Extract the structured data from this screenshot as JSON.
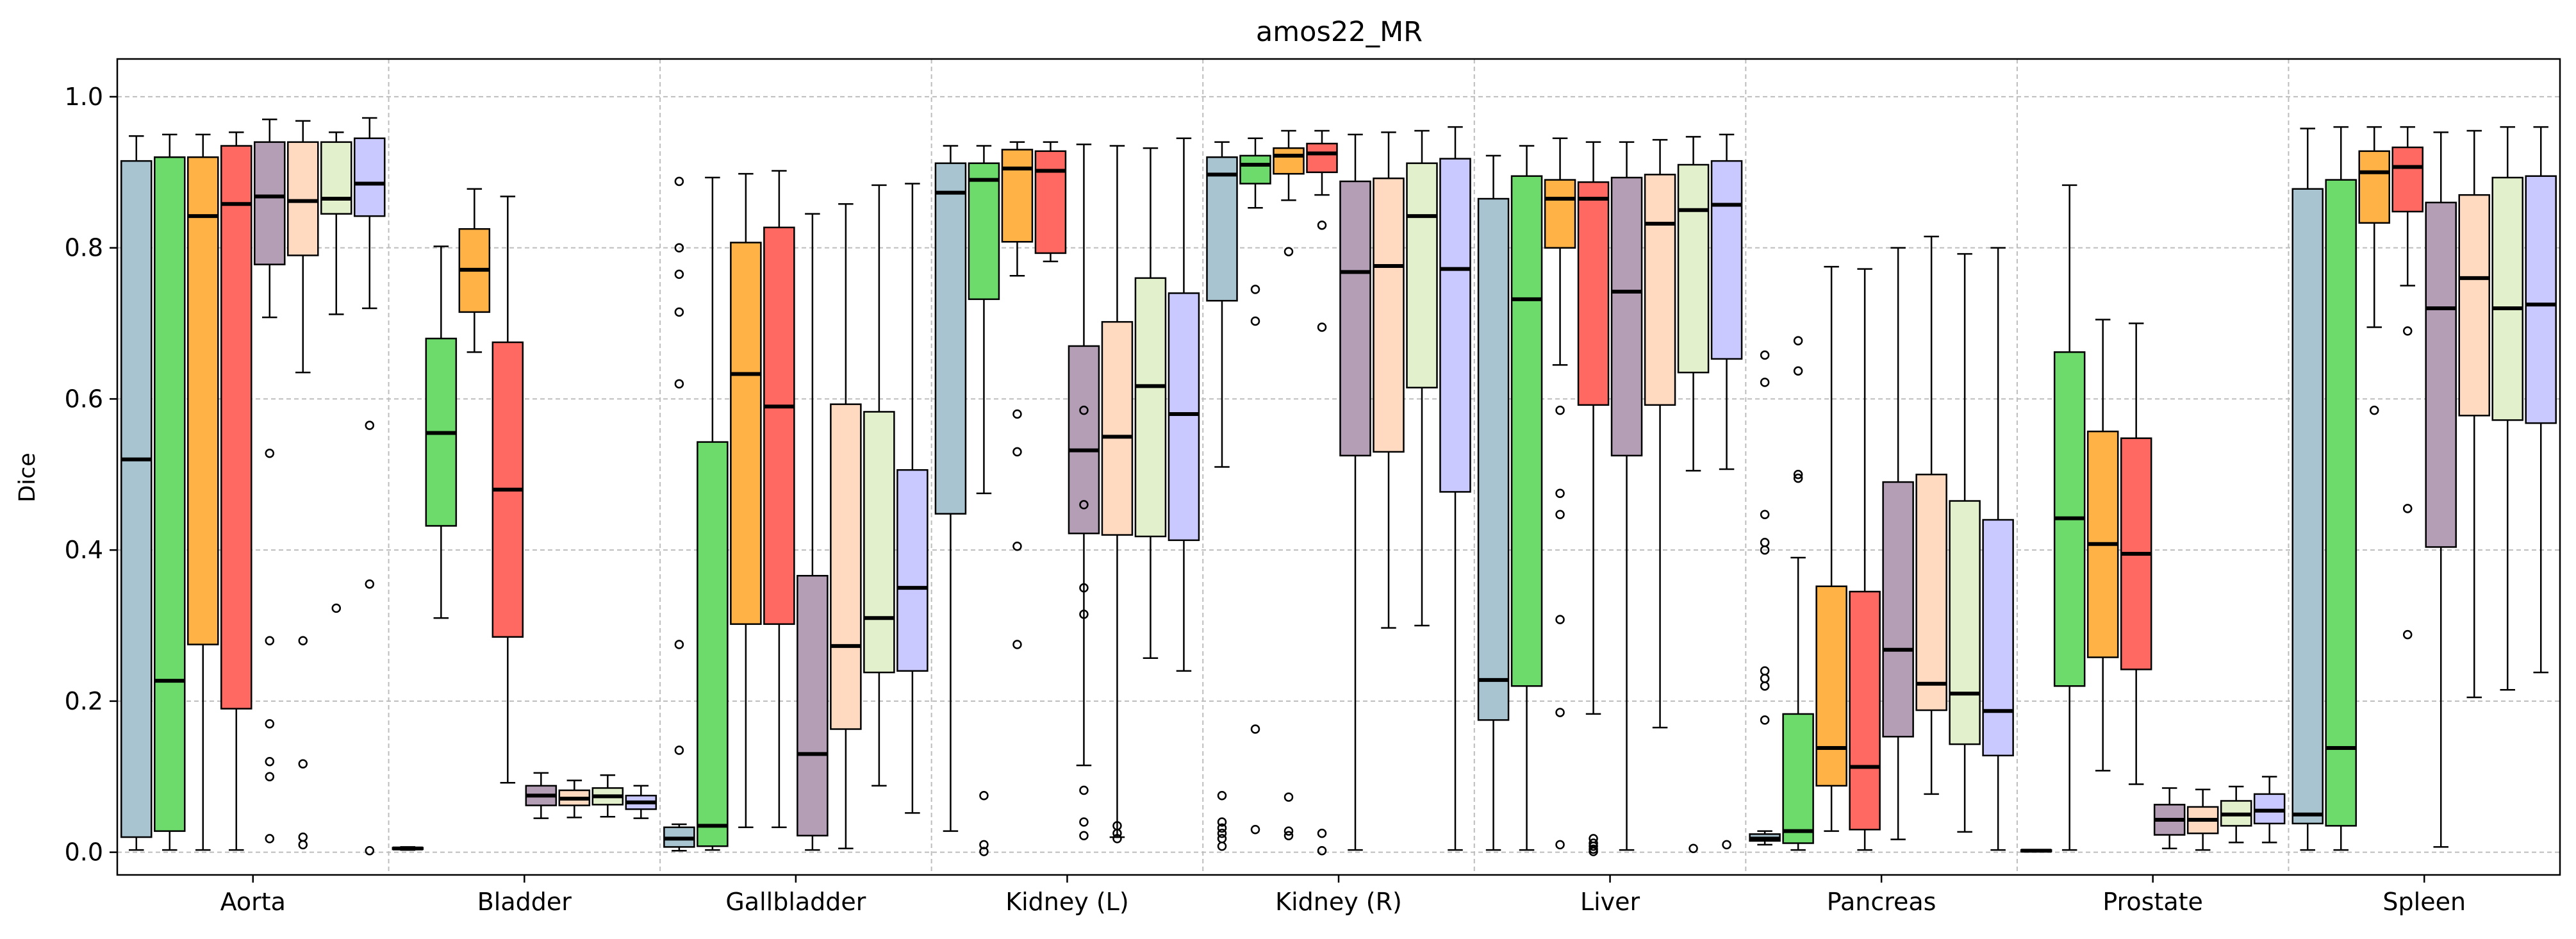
{
  "chart_data": {
    "type": "box",
    "title": "amos22_MR",
    "xlabel": "",
    "ylabel": "Dice",
    "ylim": [
      -0.03,
      1.05
    ],
    "yticks": [
      0.0,
      0.2,
      0.4,
      0.6,
      0.8,
      1.0
    ],
    "ytick_labels": [
      "0.0",
      "0.2",
      "0.4",
      "0.6",
      "0.8",
      "1.0"
    ],
    "grid": true,
    "categories": [
      "Aorta",
      "Bladder",
      "Gallbladder",
      "Kidney (L)",
      "Kidney (R)",
      "Liver",
      "Pancreas",
      "Prostate",
      "Spleen"
    ],
    "series_colors": [
      "#a7c4d0",
      "#6cdb6c",
      "#ffb347",
      "#ff6961",
      "#b39eb5",
      "#ffdac1",
      "#e2f0cb",
      "#c9c9ff"
    ],
    "boxes": [
      [
        {
          "wlo": 0.003,
          "q1": 0.02,
          "med": 0.52,
          "q3": 0.915,
          "whi": 0.948,
          "fl": []
        },
        {
          "wlo": 0.003,
          "q1": 0.028,
          "med": 0.227,
          "q3": 0.92,
          "whi": 0.95,
          "fl": []
        },
        {
          "wlo": 0.003,
          "q1": 0.275,
          "med": 0.842,
          "q3": 0.92,
          "whi": 0.95,
          "fl": []
        },
        {
          "wlo": 0.003,
          "q1": 0.19,
          "med": 0.858,
          "q3": 0.935,
          "whi": 0.953,
          "fl": []
        },
        {
          "wlo": 0.708,
          "q1": 0.778,
          "med": 0.868,
          "q3": 0.94,
          "whi": 0.97,
          "fl": [
            0.528,
            0.28,
            0.17,
            0.12,
            0.1,
            0.018
          ]
        },
        {
          "wlo": 0.635,
          "q1": 0.79,
          "med": 0.862,
          "q3": 0.94,
          "whi": 0.968,
          "fl": [
            0.28,
            0.117,
            0.02,
            0.01
          ]
        },
        {
          "wlo": 0.712,
          "q1": 0.845,
          "med": 0.865,
          "q3": 0.94,
          "whi": 0.953,
          "fl": [
            0.323
          ]
        },
        {
          "wlo": 0.72,
          "q1": 0.842,
          "med": 0.885,
          "q3": 0.945,
          "whi": 0.972,
          "fl": [
            0.565,
            0.355,
            0.002
          ]
        }
      ],
      [
        {
          "wlo": 0.003,
          "q1": 0.004,
          "med": 0.005,
          "q3": 0.006,
          "whi": 0.007,
          "fl": []
        },
        {
          "wlo": 0.31,
          "q1": 0.432,
          "med": 0.555,
          "q3": 0.68,
          "whi": 0.802,
          "fl": []
        },
        {
          "wlo": 0.662,
          "q1": 0.715,
          "med": 0.771,
          "q3": 0.825,
          "whi": 0.878,
          "fl": []
        },
        {
          "wlo": 0.092,
          "q1": 0.285,
          "med": 0.48,
          "q3": 0.675,
          "whi": 0.868,
          "fl": []
        },
        {
          "wlo": 0.045,
          "q1": 0.062,
          "med": 0.075,
          "q3": 0.088,
          "whi": 0.105,
          "fl": []
        },
        {
          "wlo": 0.046,
          "q1": 0.062,
          "med": 0.071,
          "q3": 0.082,
          "whi": 0.095,
          "fl": []
        },
        {
          "wlo": 0.047,
          "q1": 0.063,
          "med": 0.074,
          "q3": 0.085,
          "whi": 0.102,
          "fl": []
        },
        {
          "wlo": 0.045,
          "q1": 0.057,
          "med": 0.066,
          "q3": 0.075,
          "whi": 0.088,
          "fl": []
        }
      ],
      [
        {
          "wlo": 0.002,
          "q1": 0.007,
          "med": 0.018,
          "q3": 0.033,
          "whi": 0.037,
          "fl": [
            0.888,
            0.8,
            0.765,
            0.715,
            0.62,
            0.275,
            0.135
          ]
        },
        {
          "wlo": 0.003,
          "q1": 0.008,
          "med": 0.035,
          "q3": 0.543,
          "whi": 0.893,
          "fl": []
        },
        {
          "wlo": 0.033,
          "q1": 0.302,
          "med": 0.633,
          "q3": 0.807,
          "whi": 0.898,
          "fl": []
        },
        {
          "wlo": 0.033,
          "q1": 0.302,
          "med": 0.59,
          "q3": 0.827,
          "whi": 0.902,
          "fl": []
        },
        {
          "wlo": 0.003,
          "q1": 0.022,
          "med": 0.13,
          "q3": 0.366,
          "whi": 0.845,
          "fl": []
        },
        {
          "wlo": 0.005,
          "q1": 0.163,
          "med": 0.273,
          "q3": 0.593,
          "whi": 0.858,
          "fl": []
        },
        {
          "wlo": 0.088,
          "q1": 0.238,
          "med": 0.31,
          "q3": 0.583,
          "whi": 0.883,
          "fl": []
        },
        {
          "wlo": 0.052,
          "q1": 0.24,
          "med": 0.35,
          "q3": 0.506,
          "whi": 0.885,
          "fl": []
        }
      ],
      [
        {
          "wlo": 0.028,
          "q1": 0.448,
          "med": 0.873,
          "q3": 0.912,
          "whi": 0.935,
          "fl": []
        },
        {
          "wlo": 0.475,
          "q1": 0.732,
          "med": 0.89,
          "q3": 0.912,
          "whi": 0.935,
          "fl": [
            0.075,
            0.01,
            0.001
          ]
        },
        {
          "wlo": 0.763,
          "q1": 0.808,
          "med": 0.905,
          "q3": 0.93,
          "whi": 0.94,
          "fl": [
            0.58,
            0.53,
            0.405,
            0.275
          ]
        },
        {
          "wlo": 0.782,
          "q1": 0.793,
          "med": 0.902,
          "q3": 0.928,
          "whi": 0.94,
          "fl": []
        },
        {
          "wlo": 0.115,
          "q1": 0.422,
          "med": 0.532,
          "q3": 0.67,
          "whi": 0.937,
          "fl": [
            0.585,
            0.46,
            0.35,
            0.315,
            0.082,
            0.04,
            0.022
          ]
        },
        {
          "wlo": 0.02,
          "q1": 0.42,
          "med": 0.55,
          "q3": 0.702,
          "whi": 0.935,
          "fl": [
            0.035,
            0.025,
            0.018
          ]
        },
        {
          "wlo": 0.257,
          "q1": 0.418,
          "med": 0.617,
          "q3": 0.76,
          "whi": 0.932,
          "fl": []
        },
        {
          "wlo": 0.24,
          "q1": 0.413,
          "med": 0.58,
          "q3": 0.74,
          "whi": 0.945,
          "fl": []
        }
      ],
      [
        {
          "wlo": 0.51,
          "q1": 0.73,
          "med": 0.897,
          "q3": 0.92,
          "whi": 0.94,
          "fl": [
            0.075,
            0.04,
            0.032,
            0.025,
            0.018,
            0.008
          ]
        },
        {
          "wlo": 0.853,
          "q1": 0.885,
          "med": 0.91,
          "q3": 0.922,
          "whi": 0.945,
          "fl": [
            0.745,
            0.703,
            0.163,
            0.03
          ]
        },
        {
          "wlo": 0.863,
          "q1": 0.898,
          "med": 0.922,
          "q3": 0.932,
          "whi": 0.955,
          "fl": [
            0.795,
            0.073,
            0.028,
            0.022
          ]
        },
        {
          "wlo": 0.87,
          "q1": 0.9,
          "med": 0.925,
          "q3": 0.938,
          "whi": 0.955,
          "fl": [
            0.83,
            0.695,
            0.025,
            0.002
          ]
        },
        {
          "wlo": 0.003,
          "q1": 0.525,
          "med": 0.768,
          "q3": 0.888,
          "whi": 0.95,
          "fl": []
        },
        {
          "wlo": 0.297,
          "q1": 0.53,
          "med": 0.776,
          "q3": 0.892,
          "whi": 0.953,
          "fl": []
        },
        {
          "wlo": 0.3,
          "q1": 0.615,
          "med": 0.842,
          "q3": 0.912,
          "whi": 0.955,
          "fl": []
        },
        {
          "wlo": 0.003,
          "q1": 0.477,
          "med": 0.772,
          "q3": 0.918,
          "whi": 0.96,
          "fl": []
        }
      ],
      [
        {
          "wlo": 0.003,
          "q1": 0.175,
          "med": 0.228,
          "q3": 0.865,
          "whi": 0.922,
          "fl": []
        },
        {
          "wlo": 0.003,
          "q1": 0.22,
          "med": 0.732,
          "q3": 0.895,
          "whi": 0.935,
          "fl": []
        },
        {
          "wlo": 0.645,
          "q1": 0.8,
          "med": 0.865,
          "q3": 0.89,
          "whi": 0.945,
          "fl": [
            0.585,
            0.475,
            0.447,
            0.308,
            0.185,
            0.01
          ]
        },
        {
          "wlo": 0.183,
          "q1": 0.592,
          "med": 0.865,
          "q3": 0.887,
          "whi": 0.94,
          "fl": [
            0.018,
            0.012,
            0.008,
            0.004,
            0.001
          ]
        },
        {
          "wlo": 0.003,
          "q1": 0.525,
          "med": 0.742,
          "q3": 0.893,
          "whi": 0.94,
          "fl": []
        },
        {
          "wlo": 0.165,
          "q1": 0.592,
          "med": 0.832,
          "q3": 0.897,
          "whi": 0.943,
          "fl": []
        },
        {
          "wlo": 0.505,
          "q1": 0.635,
          "med": 0.85,
          "q3": 0.91,
          "whi": 0.947,
          "fl": [
            0.005
          ]
        },
        {
          "wlo": 0.507,
          "q1": 0.653,
          "med": 0.857,
          "q3": 0.915,
          "whi": 0.95,
          "fl": [
            0.01
          ]
        }
      ],
      [
        {
          "wlo": 0.01,
          "q1": 0.015,
          "med": 0.018,
          "q3": 0.024,
          "whi": 0.028,
          "fl": [
            0.658,
            0.622,
            0.447,
            0.41,
            0.4,
            0.24,
            0.23,
            0.22,
            0.175
          ]
        },
        {
          "wlo": 0.003,
          "q1": 0.012,
          "med": 0.028,
          "q3": 0.183,
          "whi": 0.39,
          "fl": [
            0.677,
            0.637,
            0.5,
            0.495
          ]
        },
        {
          "wlo": 0.028,
          "q1": 0.088,
          "med": 0.138,
          "q3": 0.352,
          "whi": 0.775,
          "fl": []
        },
        {
          "wlo": 0.003,
          "q1": 0.03,
          "med": 0.113,
          "q3": 0.345,
          "whi": 0.772,
          "fl": []
        },
        {
          "wlo": 0.017,
          "q1": 0.153,
          "med": 0.268,
          "q3": 0.49,
          "whi": 0.8,
          "fl": []
        },
        {
          "wlo": 0.077,
          "q1": 0.188,
          "med": 0.223,
          "q3": 0.5,
          "whi": 0.815,
          "fl": []
        },
        {
          "wlo": 0.027,
          "q1": 0.143,
          "med": 0.21,
          "q3": 0.465,
          "whi": 0.792,
          "fl": []
        },
        {
          "wlo": 0.003,
          "q1": 0.128,
          "med": 0.187,
          "q3": 0.44,
          "whi": 0.8,
          "fl": []
        }
      ],
      [
        {
          "wlo": 0.001,
          "q1": 0.001,
          "med": 0.002,
          "q3": 0.003,
          "whi": 0.003,
          "fl": []
        },
        {
          "wlo": 0.003,
          "q1": 0.22,
          "med": 0.442,
          "q3": 0.662,
          "whi": 0.883,
          "fl": []
        },
        {
          "wlo": 0.108,
          "q1": 0.258,
          "med": 0.408,
          "q3": 0.557,
          "whi": 0.705,
          "fl": []
        },
        {
          "wlo": 0.09,
          "q1": 0.242,
          "med": 0.395,
          "q3": 0.548,
          "whi": 0.7,
          "fl": []
        },
        {
          "wlo": 0.005,
          "q1": 0.023,
          "med": 0.043,
          "q3": 0.063,
          "whi": 0.085,
          "fl": []
        },
        {
          "wlo": 0.003,
          "q1": 0.025,
          "med": 0.043,
          "q3": 0.06,
          "whi": 0.083,
          "fl": []
        },
        {
          "wlo": 0.013,
          "q1": 0.035,
          "med": 0.05,
          "q3": 0.068,
          "whi": 0.087,
          "fl": []
        },
        {
          "wlo": 0.013,
          "q1": 0.038,
          "med": 0.055,
          "q3": 0.077,
          "whi": 0.1,
          "fl": []
        }
      ],
      [
        {
          "wlo": 0.003,
          "q1": 0.038,
          "med": 0.05,
          "q3": 0.878,
          "whi": 0.958,
          "fl": []
        },
        {
          "wlo": 0.003,
          "q1": 0.035,
          "med": 0.138,
          "q3": 0.89,
          "whi": 0.96,
          "fl": []
        },
        {
          "wlo": 0.695,
          "q1": 0.833,
          "med": 0.9,
          "q3": 0.928,
          "whi": 0.96,
          "fl": [
            0.585
          ]
        },
        {
          "wlo": 0.75,
          "q1": 0.848,
          "med": 0.907,
          "q3": 0.933,
          "whi": 0.96,
          "fl": [
            0.69,
            0.455,
            0.288
          ]
        },
        {
          "wlo": 0.007,
          "q1": 0.404,
          "med": 0.72,
          "q3": 0.86,
          "whi": 0.953,
          "fl": []
        },
        {
          "wlo": 0.205,
          "q1": 0.578,
          "med": 0.76,
          "q3": 0.87,
          "whi": 0.955,
          "fl": []
        },
        {
          "wlo": 0.215,
          "q1": 0.572,
          "med": 0.72,
          "q3": 0.893,
          "whi": 0.96,
          "fl": []
        },
        {
          "wlo": 0.238,
          "q1": 0.568,
          "med": 0.725,
          "q3": 0.895,
          "whi": 0.96,
          "fl": []
        }
      ]
    ]
  }
}
